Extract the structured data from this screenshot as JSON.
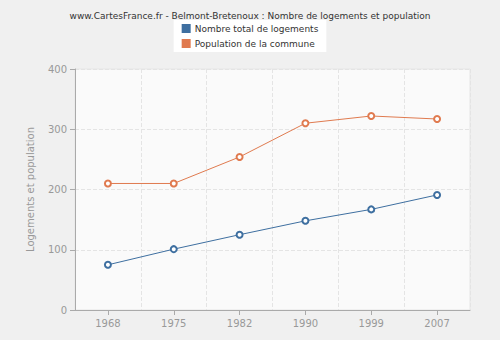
{
  "chart_data": {
    "type": "line",
    "title": "www.CartesFrance.fr - Belmont-Bretenoux : Nombre de logements et population",
    "y_label": "Logements et population",
    "categories": [
      "1968",
      "1975",
      "1982",
      "1990",
      "1999",
      "2007"
    ],
    "series": [
      {
        "name": "Nombre total de logements",
        "color": "#3e6fa0",
        "marker": "circle",
        "values": [
          75,
          101,
          125,
          148,
          167,
          191
        ]
      },
      {
        "name": "Population de la commune",
        "color": "#e07a4f",
        "marker": "circle",
        "values": [
          210,
          210,
          254,
          310,
          322,
          317
        ]
      }
    ],
    "ylim": [
      0,
      400
    ],
    "yticks": [
      0,
      100,
      200,
      300,
      400
    ],
    "grid": true,
    "legend": "top"
  }
}
